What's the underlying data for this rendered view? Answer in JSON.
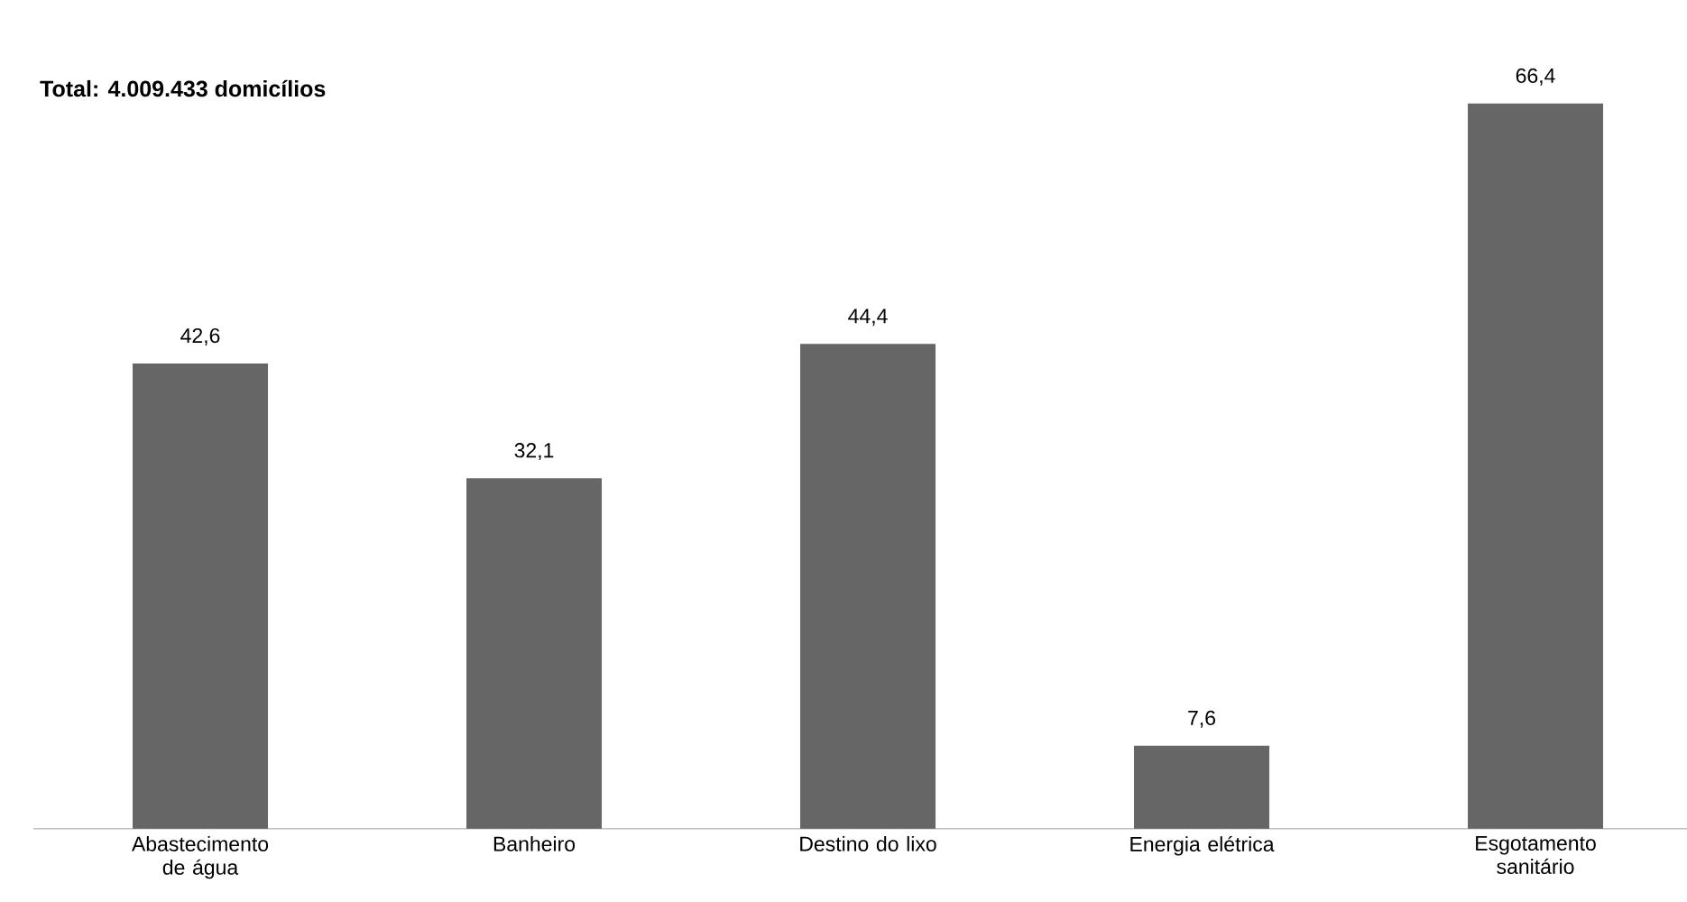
{
  "chart_data": {
    "type": "bar",
    "title": "Total: 4.009.433 domicílios",
    "categories": [
      "Abastecimento de água",
      "Banheiro",
      "Destino do lixo",
      "Energia elétrica",
      "Esgotamento sanitário"
    ],
    "values": [
      42.6,
      32.1,
      44.4,
      7.6,
      66.4
    ],
    "value_labels": [
      "42,6",
      "32,1",
      "44,4",
      "7,6",
      "66,4"
    ],
    "color": "#666666"
  }
}
